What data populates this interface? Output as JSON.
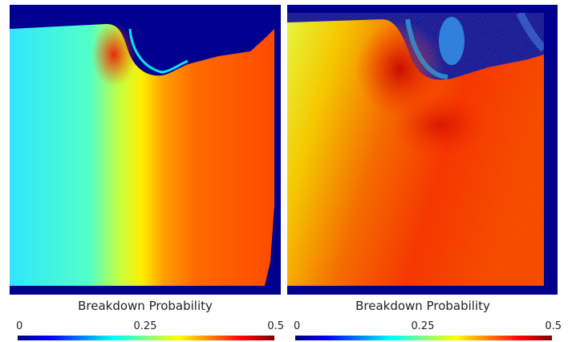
{
  "panels": [
    {
      "id": "left",
      "legend": {
        "title": "Breakdown Probability",
        "ticks": [
          "0",
          "0.25",
          "0.5"
        ],
        "colormap": [
          "#00007f",
          "#0000ff",
          "#007fff",
          "#00ffff",
          "#7fff7f",
          "#ffff00",
          "#ff7f00",
          "#ff0000",
          "#7f0000"
        ]
      }
    },
    {
      "id": "right",
      "legend": {
        "title": "Breakdown Probability",
        "ticks": [
          "0",
          "0.25",
          "0.5"
        ],
        "colormap": [
          "#00007f",
          "#0000ff",
          "#007fff",
          "#00ffff",
          "#7fff7f",
          "#ffff00",
          "#ff7f00",
          "#ff0000",
          "#7f0000"
        ]
      }
    }
  ]
}
